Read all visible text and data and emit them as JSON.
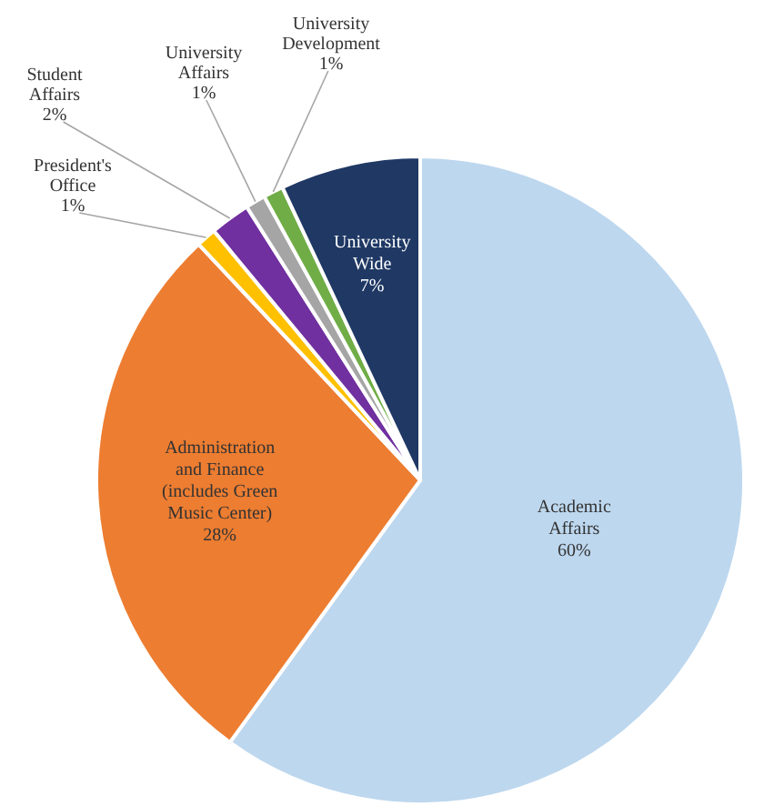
{
  "chart_data": {
    "type": "pie",
    "categories": [
      "Academic Affairs",
      "Administration and Finance (includes Green Music Center)",
      "President's Office",
      "Student Affairs",
      "University Affairs",
      "University Development",
      "University Wide"
    ],
    "values": [
      60,
      28,
      1,
      2,
      1,
      1,
      7
    ],
    "value_labels": [
      "60%",
      "28%",
      "1%",
      "2%",
      "1%",
      "1%",
      "7%"
    ],
    "colors": [
      "#bdd7ee",
      "#ed7d31",
      "#ffc000",
      "#7030a0",
      "#a5a5a5",
      "#70ad47",
      "#1f3864"
    ],
    "legend": false
  }
}
